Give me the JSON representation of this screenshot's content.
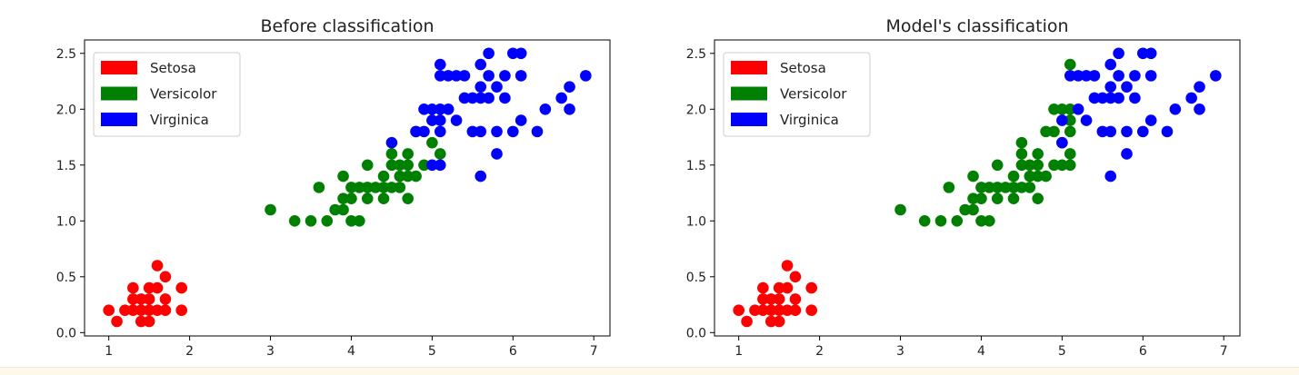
{
  "chart_data": [
    {
      "type": "scatter",
      "title": "Before classification",
      "xlabel": "",
      "ylabel": "",
      "xlim": [
        0.7,
        7.2
      ],
      "ylim": [
        -0.03,
        2.62
      ],
      "xticks": [
        1,
        2,
        3,
        4,
        5,
        6,
        7
      ],
      "xtick_labels": [
        "1",
        "2",
        "3",
        "4",
        "5",
        "6",
        "7"
      ],
      "yticks": [
        0.0,
        0.5,
        1.0,
        1.5,
        2.0,
        2.5
      ],
      "ytick_labels": [
        "0.0",
        "0.5",
        "1.0",
        "1.5",
        "2.0",
        "2.5"
      ],
      "grid": false,
      "legend_position": "top-left",
      "series": [
        {
          "name": "Setosa",
          "color": "#ff0000",
          "points": [
            [
              1.0,
              0.2
            ],
            [
              1.1,
              0.1
            ],
            [
              1.2,
              0.2
            ],
            [
              1.3,
              0.2
            ],
            [
              1.3,
              0.3
            ],
            [
              1.3,
              0.4
            ],
            [
              1.4,
              0.1
            ],
            [
              1.4,
              0.2
            ],
            [
              1.4,
              0.3
            ],
            [
              1.5,
              0.1
            ],
            [
              1.5,
              0.2
            ],
            [
              1.5,
              0.3
            ],
            [
              1.5,
              0.4
            ],
            [
              1.6,
              0.2
            ],
            [
              1.6,
              0.4
            ],
            [
              1.6,
              0.6
            ],
            [
              1.7,
              0.2
            ],
            [
              1.7,
              0.3
            ],
            [
              1.7,
              0.5
            ],
            [
              1.9,
              0.2
            ],
            [
              1.9,
              0.4
            ]
          ]
        },
        {
          "name": "Versicolor",
          "color": "#008000",
          "points": [
            [
              3.0,
              1.1
            ],
            [
              3.3,
              1.0
            ],
            [
              3.5,
              1.0
            ],
            [
              3.6,
              1.3
            ],
            [
              3.7,
              1.0
            ],
            [
              3.8,
              1.1
            ],
            [
              3.9,
              1.1
            ],
            [
              3.9,
              1.2
            ],
            [
              3.9,
              1.4
            ],
            [
              4.0,
              1.0
            ],
            [
              4.0,
              1.2
            ],
            [
              4.0,
              1.3
            ],
            [
              4.1,
              1.0
            ],
            [
              4.1,
              1.3
            ],
            [
              4.2,
              1.2
            ],
            [
              4.2,
              1.3
            ],
            [
              4.2,
              1.5
            ],
            [
              4.3,
              1.3
            ],
            [
              4.4,
              1.2
            ],
            [
              4.4,
              1.3
            ],
            [
              4.4,
              1.4
            ],
            [
              4.5,
              1.3
            ],
            [
              4.5,
              1.5
            ],
            [
              4.5,
              1.6
            ],
            [
              4.6,
              1.3
            ],
            [
              4.6,
              1.4
            ],
            [
              4.6,
              1.5
            ],
            [
              4.7,
              1.2
            ],
            [
              4.7,
              1.4
            ],
            [
              4.7,
              1.5
            ],
            [
              4.7,
              1.6
            ],
            [
              4.8,
              1.4
            ],
            [
              4.8,
              1.8
            ],
            [
              4.9,
              1.5
            ],
            [
              5.0,
              1.7
            ],
            [
              5.1,
              1.6
            ]
          ]
        },
        {
          "name": "Virginica",
          "color": "#0000ff",
          "points": [
            [
              4.5,
              1.7
            ],
            [
              4.8,
              1.8
            ],
            [
              4.9,
              1.8
            ],
            [
              4.9,
              2.0
            ],
            [
              5.0,
              1.5
            ],
            [
              5.0,
              1.9
            ],
            [
              5.0,
              2.0
            ],
            [
              5.1,
              1.5
            ],
            [
              5.1,
              1.8
            ],
            [
              5.1,
              1.9
            ],
            [
              5.1,
              2.0
            ],
            [
              5.1,
              2.3
            ],
            [
              5.1,
              2.4
            ],
            [
              5.2,
              2.0
            ],
            [
              5.2,
              2.3
            ],
            [
              5.3,
              1.9
            ],
            [
              5.3,
              2.3
            ],
            [
              5.4,
              2.1
            ],
            [
              5.4,
              2.3
            ],
            [
              5.5,
              1.8
            ],
            [
              5.5,
              2.1
            ],
            [
              5.6,
              1.4
            ],
            [
              5.6,
              1.8
            ],
            [
              5.6,
              2.1
            ],
            [
              5.6,
              2.2
            ],
            [
              5.6,
              2.4
            ],
            [
              5.7,
              2.1
            ],
            [
              5.7,
              2.3
            ],
            [
              5.7,
              2.5
            ],
            [
              5.8,
              1.6
            ],
            [
              5.8,
              1.8
            ],
            [
              5.8,
              2.2
            ],
            [
              5.9,
              2.1
            ],
            [
              5.9,
              2.3
            ],
            [
              6.0,
              1.8
            ],
            [
              6.0,
              2.5
            ],
            [
              6.1,
              1.9
            ],
            [
              6.1,
              2.3
            ],
            [
              6.1,
              2.5
            ],
            [
              6.3,
              1.8
            ],
            [
              6.4,
              2.0
            ],
            [
              6.6,
              2.1
            ],
            [
              6.7,
              2.0
            ],
            [
              6.7,
              2.2
            ],
            [
              6.9,
              2.3
            ]
          ]
        }
      ]
    },
    {
      "type": "scatter",
      "title": "Model's classification",
      "xlabel": "",
      "ylabel": "",
      "xlim": [
        0.7,
        7.2
      ],
      "ylim": [
        -0.03,
        2.62
      ],
      "xticks": [
        1,
        2,
        3,
        4,
        5,
        6,
        7
      ],
      "xtick_labels": [
        "1",
        "2",
        "3",
        "4",
        "5",
        "6",
        "7"
      ],
      "yticks": [
        0.0,
        0.5,
        1.0,
        1.5,
        2.0,
        2.5
      ],
      "ytick_labels": [
        "0.0",
        "0.5",
        "1.0",
        "1.5",
        "2.0",
        "2.5"
      ],
      "grid": false,
      "legend_position": "top-left",
      "series": [
        {
          "name": "Setosa",
          "color": "#ff0000",
          "points": [
            [
              1.0,
              0.2
            ],
            [
              1.1,
              0.1
            ],
            [
              1.2,
              0.2
            ],
            [
              1.3,
              0.2
            ],
            [
              1.3,
              0.3
            ],
            [
              1.3,
              0.4
            ],
            [
              1.4,
              0.1
            ],
            [
              1.4,
              0.2
            ],
            [
              1.4,
              0.3
            ],
            [
              1.5,
              0.1
            ],
            [
              1.5,
              0.2
            ],
            [
              1.5,
              0.3
            ],
            [
              1.5,
              0.4
            ],
            [
              1.6,
              0.2
            ],
            [
              1.6,
              0.4
            ],
            [
              1.6,
              0.6
            ],
            [
              1.7,
              0.2
            ],
            [
              1.7,
              0.3
            ],
            [
              1.7,
              0.5
            ],
            [
              1.9,
              0.2
            ],
            [
              1.9,
              0.4
            ]
          ]
        },
        {
          "name": "Versicolor",
          "color": "#008000",
          "points": [
            [
              3.0,
              1.1
            ],
            [
              3.3,
              1.0
            ],
            [
              3.5,
              1.0
            ],
            [
              3.6,
              1.3
            ],
            [
              3.7,
              1.0
            ],
            [
              3.8,
              1.1
            ],
            [
              3.9,
              1.1
            ],
            [
              3.9,
              1.2
            ],
            [
              3.9,
              1.4
            ],
            [
              4.0,
              1.0
            ],
            [
              4.0,
              1.2
            ],
            [
              4.0,
              1.3
            ],
            [
              4.1,
              1.0
            ],
            [
              4.1,
              1.3
            ],
            [
              4.2,
              1.2
            ],
            [
              4.2,
              1.3
            ],
            [
              4.2,
              1.5
            ],
            [
              4.3,
              1.3
            ],
            [
              4.4,
              1.2
            ],
            [
              4.4,
              1.3
            ],
            [
              4.4,
              1.4
            ],
            [
              4.5,
              1.3
            ],
            [
              4.5,
              1.5
            ],
            [
              4.5,
              1.6
            ],
            [
              4.5,
              1.7
            ],
            [
              4.6,
              1.3
            ],
            [
              4.6,
              1.4
            ],
            [
              4.6,
              1.5
            ],
            [
              4.7,
              1.2
            ],
            [
              4.7,
              1.4
            ],
            [
              4.7,
              1.5
            ],
            [
              4.7,
              1.6
            ],
            [
              4.8,
              1.4
            ],
            [
              4.8,
              1.8
            ],
            [
              4.9,
              1.5
            ],
            [
              4.9,
              1.8
            ],
            [
              4.9,
              2.0
            ],
            [
              5.0,
              1.5
            ],
            [
              5.0,
              1.7
            ],
            [
              5.0,
              2.0
            ],
            [
              5.1,
              1.5
            ],
            [
              5.1,
              1.6
            ],
            [
              5.1,
              1.8
            ],
            [
              5.1,
              1.9
            ],
            [
              5.1,
              2.0
            ],
            [
              5.1,
              2.4
            ]
          ]
        },
        {
          "name": "Virginica",
          "color": "#0000ff",
          "points": [
            [
              5.0,
              1.7
            ],
            [
              5.0,
              1.9
            ],
            [
              5.1,
              2.3
            ],
            [
              5.2,
              2.0
            ],
            [
              5.2,
              2.3
            ],
            [
              5.3,
              1.9
            ],
            [
              5.3,
              2.3
            ],
            [
              5.4,
              2.1
            ],
            [
              5.4,
              2.3
            ],
            [
              5.5,
              1.8
            ],
            [
              5.5,
              2.1
            ],
            [
              5.6,
              1.4
            ],
            [
              5.6,
              1.8
            ],
            [
              5.6,
              2.1
            ],
            [
              5.6,
              2.2
            ],
            [
              5.6,
              2.4
            ],
            [
              5.7,
              2.1
            ],
            [
              5.7,
              2.3
            ],
            [
              5.7,
              2.5
            ],
            [
              5.8,
              1.6
            ],
            [
              5.8,
              1.8
            ],
            [
              5.8,
              2.2
            ],
            [
              5.9,
              2.1
            ],
            [
              5.9,
              2.3
            ],
            [
              6.0,
              1.8
            ],
            [
              6.0,
              2.5
            ],
            [
              6.1,
              1.9
            ],
            [
              6.1,
              2.3
            ],
            [
              6.1,
              2.5
            ],
            [
              6.3,
              1.8
            ],
            [
              6.4,
              2.0
            ],
            [
              6.6,
              2.1
            ],
            [
              6.7,
              2.0
            ],
            [
              6.7,
              2.2
            ],
            [
              6.9,
              2.3
            ]
          ]
        }
      ]
    }
  ]
}
